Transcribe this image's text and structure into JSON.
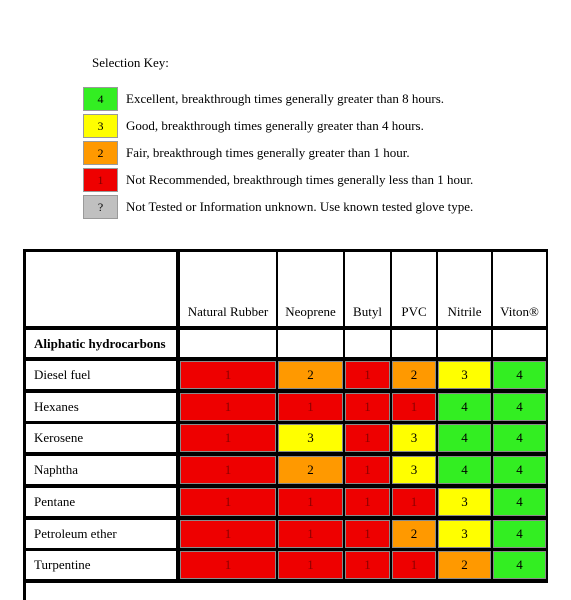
{
  "key": {
    "title": "Selection Key:",
    "items": [
      {
        "code": "4",
        "text": "Excellent, breakthrough times generally greater than 8 hours.",
        "color": "#33ee22"
      },
      {
        "code": "3",
        "text": "Good, breakthrough times generally greater than 4 hours.",
        "color": "#ffff00"
      },
      {
        "code": "2",
        "text": "Fair, breakthrough times generally greater than 1 hour.",
        "color": "#ff9900"
      },
      {
        "code": "1",
        "text": "Not Recommended, breakthrough times generally less than 1 hour.",
        "color": "#ee0000"
      },
      {
        "code": "?",
        "text": "Not Tested or Information unknown.  Use known tested glove type.",
        "color": "#c0c0c0"
      }
    ]
  },
  "table": {
    "headers": [
      "Natural Rubber",
      "Neoprene",
      "Butyl",
      "PVC",
      "Nitrile",
      "Viton®"
    ],
    "category": "Aliphatic hydrocarbons",
    "rows": [
      {
        "name": "Diesel fuel",
        "values": [
          "1",
          "2",
          "1",
          "2",
          "3",
          "4"
        ]
      },
      {
        "name": "Hexanes",
        "values": [
          "1",
          "1",
          "1",
          "1",
          "4",
          "4"
        ]
      },
      {
        "name": "Kerosene",
        "values": [
          "1",
          "3",
          "1",
          "3",
          "4",
          "4"
        ]
      },
      {
        "name": "Naphtha",
        "values": [
          "1",
          "2",
          "1",
          "3",
          "4",
          "4"
        ]
      },
      {
        "name": "Pentane",
        "values": [
          "1",
          "1",
          "1",
          "1",
          "3",
          "4"
        ]
      },
      {
        "name": "Petroleum ether",
        "values": [
          "1",
          "1",
          "1",
          "2",
          "3",
          "4"
        ]
      },
      {
        "name": "Turpentine",
        "values": [
          "1",
          "1",
          "1",
          "1",
          "2",
          "4"
        ]
      }
    ]
  },
  "colors": {
    "4": "#33ee22",
    "3": "#ffff00",
    "2": "#ff9900",
    "1": "#ee0000",
    "?": "#c0c0c0"
  }
}
